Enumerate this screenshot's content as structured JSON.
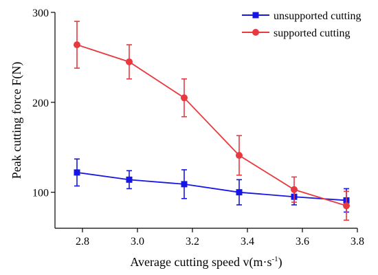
{
  "chart_data": {
    "type": "line",
    "xlabel": "Average cutting speed v(m·s",
    "xlabel_superscript": "-1",
    "xlabel_suffix": ")",
    "ylabel": "Peak cutting force F(N)",
    "xlim": [
      2.7,
      3.8
    ],
    "ylim": [
      60,
      300
    ],
    "x_ticks": [
      "2.8",
      "3.0",
      "3.2",
      "3.4",
      "3.6",
      "3.8"
    ],
    "y_ticks": [
      "100",
      "200",
      "300"
    ],
    "x_tick_values": [
      2.8,
      3.0,
      3.2,
      3.4,
      3.6,
      3.8
    ],
    "y_tick_values": [
      100,
      200,
      300
    ],
    "legend_position": "top-right",
    "grid": false,
    "series": [
      {
        "name": "unsupported cutting",
        "color": "#1515e6",
        "marker": "square",
        "x": [
          2.78,
          2.97,
          3.17,
          3.37,
          3.57,
          3.76
        ],
        "y": [
          122,
          114,
          109,
          100,
          95,
          91
        ],
        "err": [
          15,
          10,
          16,
          14,
          9,
          13
        ]
      },
      {
        "name": "supported cutting",
        "color": "#e8393f",
        "marker": "circle",
        "x": [
          2.78,
          2.97,
          3.17,
          3.37,
          3.57,
          3.76
        ],
        "y": [
          264,
          245,
          205,
          141,
          103,
          85
        ],
        "err": [
          26,
          19,
          21,
          22,
          14,
          16
        ]
      }
    ]
  }
}
